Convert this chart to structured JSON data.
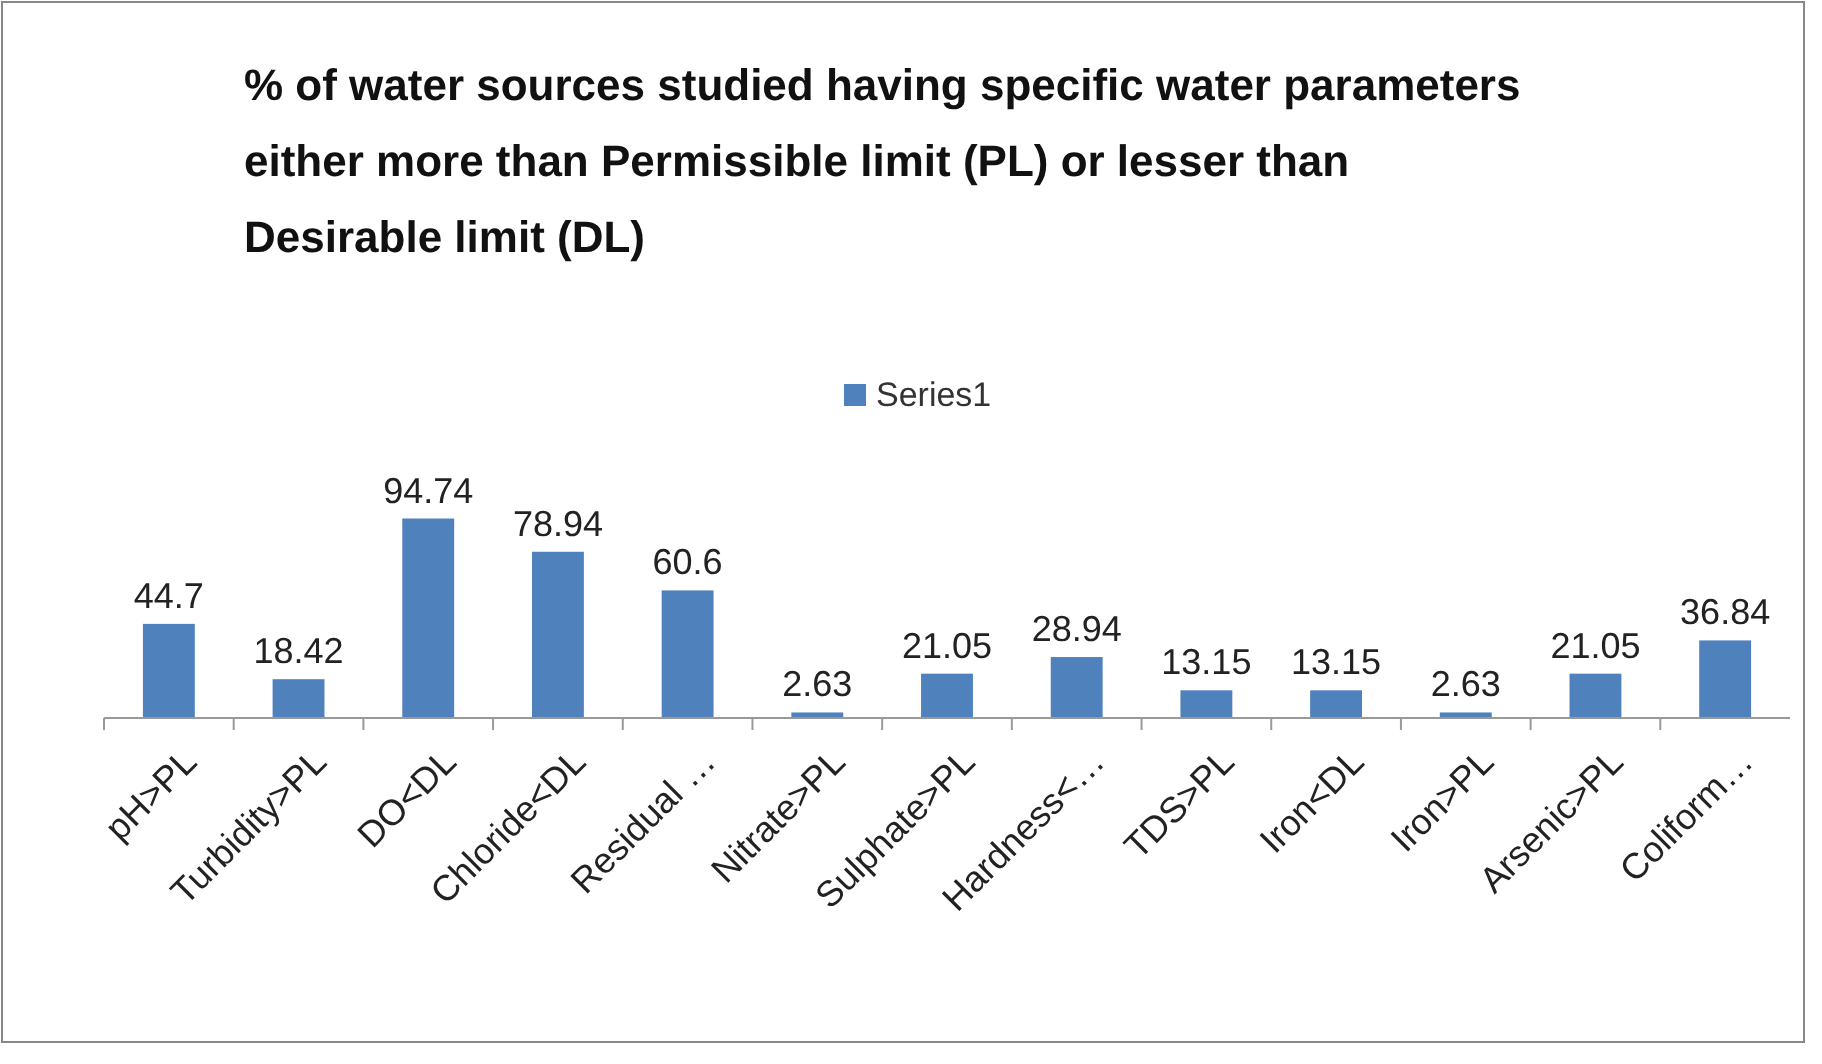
{
  "chart_data": {
    "type": "bar",
    "title": "% of water sources studied having specific water parameters either more than Permissible limit (PL) or lesser than  Desirable limit (DL)",
    "categories": [
      "pH>PL",
      "Turbidity>PL",
      "DO<DL",
      "Chloride<DL",
      "Residual …",
      "Nitrate>PL",
      "Sulphate>PL",
      "Hardness<…",
      "TDS>PL",
      "Iron<DL",
      "Iron>PL",
      "Arsenic>PL",
      "Coliform…"
    ],
    "series": [
      {
        "name": "Series1",
        "color": "#4f81bd",
        "values": [
          44.7,
          18.42,
          94.74,
          78.94,
          60.6,
          2.63,
          21.05,
          28.94,
          13.15,
          13.15,
          2.63,
          21.05,
          36.84
        ]
      }
    ],
    "data_labels": true,
    "legend": "top"
  }
}
